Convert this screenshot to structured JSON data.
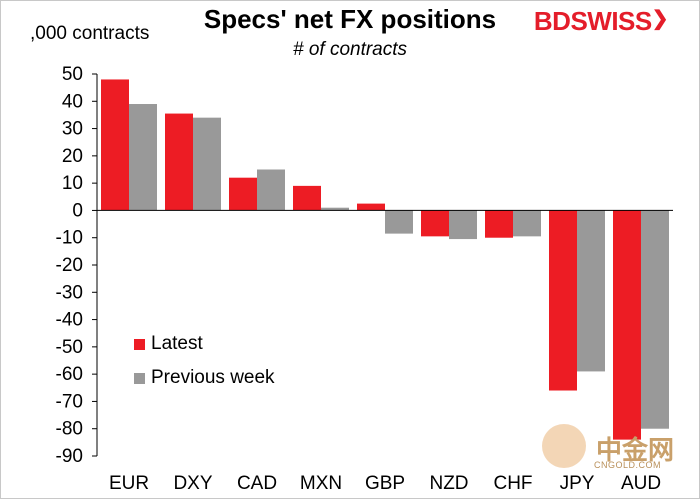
{
  "title": "Specs' net FX positions",
  "subtitle": "# of contracts",
  "y_unit_label": ",000 contracts",
  "logo": {
    "part1": "BD",
    "part2": "SWISS",
    "mark": "❯"
  },
  "watermark": {
    "text": "中金网",
    "url": "CNGOLD.COM",
    "icon": "watermark-logo-icon"
  },
  "colors": {
    "latest": "#ed1c24",
    "previous": "#999999",
    "axis": "#000000"
  },
  "chart_data": {
    "type": "bar",
    "title": "Specs' net FX positions",
    "subtitle": "# of contracts",
    "ylabel": ",000 contracts",
    "xlabel": "",
    "categories": [
      "EUR",
      "DXY",
      "CAD",
      "MXN",
      "GBP",
      "NZD",
      "CHF",
      "JPY",
      "AUD"
    ],
    "series": [
      {
        "name": "Latest",
        "color": "#ed1c24",
        "values": [
          48,
          35.5,
          12,
          9,
          2.5,
          -9.5,
          -10,
          -66,
          -84
        ]
      },
      {
        "name": "Previous week",
        "color": "#999999",
        "values": [
          39,
          34,
          15,
          1,
          -8.5,
          -10.5,
          -9.5,
          -59,
          -80
        ]
      }
    ],
    "ylim": [
      -90,
      50
    ],
    "yticks": [
      50,
      40,
      30,
      20,
      10,
      0,
      -10,
      -20,
      -30,
      -40,
      -50,
      -60,
      -70,
      -80,
      -90
    ],
    "grid": false,
    "legend_position": "left-middle"
  }
}
